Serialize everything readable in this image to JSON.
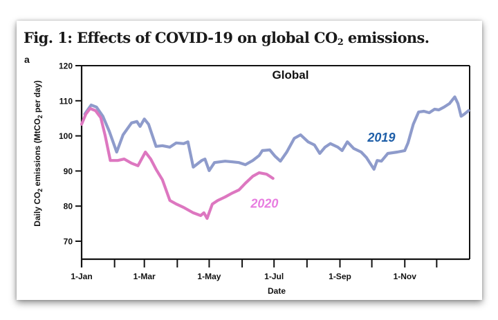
{
  "figure": {
    "title_main": "Fig. 1: Effects of COVID-19 on global CO",
    "title_sub": "2",
    "title_end": " emissions.",
    "panel_label": "a"
  },
  "chart_data": {
    "type": "line",
    "title": "Global",
    "xlabel": "Date",
    "ylabel": "Daily CO2 emissions (MtCO2 per day)",
    "ylabel_parts": {
      "pre": "Daily CO",
      "sub1": "2",
      "mid": " emissions (MtCO",
      "sub2": "2",
      "post": " per day)"
    },
    "ylim": [
      70,
      120
    ],
    "yticks": [
      70,
      80,
      90,
      100,
      110,
      120
    ],
    "xlim_day_of_year": [
      0,
      365
    ],
    "xticks": [
      {
        "day": 0,
        "label": "1-Jan"
      },
      {
        "day": 31,
        "label": ""
      },
      {
        "day": 59,
        "label": "1-Mar"
      },
      {
        "day": 90,
        "label": ""
      },
      {
        "day": 120,
        "label": "1-May"
      },
      {
        "day": 151,
        "label": ""
      },
      {
        "day": 181,
        "label": "1-Jul"
      },
      {
        "day": 212,
        "label": ""
      },
      {
        "day": 243,
        "label": "1-Sep"
      },
      {
        "day": 273,
        "label": ""
      },
      {
        "day": 304,
        "label": "1-Nov"
      },
      {
        "day": 334,
        "label": ""
      }
    ],
    "grid": false,
    "series": [
      {
        "name": "2019",
        "color": "#8e9bcb",
        "label_color": "#1f5fa8",
        "label_at": {
          "day": 282,
          "value": 98.3
        },
        "points": [
          [
            3,
            106.2
          ],
          [
            9,
            108.8
          ],
          [
            14,
            108.2
          ],
          [
            20,
            105.6
          ],
          [
            26,
            101.3
          ],
          [
            33,
            95.4
          ],
          [
            39,
            100.3
          ],
          [
            47,
            103.7
          ],
          [
            52,
            104.1
          ],
          [
            55,
            102.7
          ],
          [
            59,
            104.8
          ],
          [
            63,
            103.3
          ],
          [
            70,
            97.0
          ],
          [
            76,
            97.2
          ],
          [
            83,
            96.8
          ],
          [
            89,
            98.0
          ],
          [
            96,
            97.8
          ],
          [
            100,
            98.3
          ],
          [
            105,
            91.1
          ],
          [
            113,
            93.0
          ],
          [
            116,
            93.4
          ],
          [
            120,
            90.1
          ],
          [
            125,
            92.4
          ],
          [
            135,
            92.8
          ],
          [
            142,
            92.6
          ],
          [
            148,
            92.4
          ],
          [
            154,
            91.8
          ],
          [
            161,
            93.0
          ],
          [
            167,
            94.4
          ],
          [
            170,
            95.8
          ],
          [
            177,
            96.0
          ],
          [
            182,
            94.2
          ],
          [
            187,
            92.8
          ],
          [
            193,
            95.4
          ],
          [
            200,
            99.3
          ],
          [
            206,
            100.3
          ],
          [
            213,
            98.3
          ],
          [
            219,
            97.4
          ],
          [
            224,
            95.0
          ],
          [
            229,
            96.8
          ],
          [
            234,
            97.8
          ],
          [
            241,
            96.8
          ],
          [
            245,
            95.8
          ],
          [
            250,
            98.3
          ],
          [
            256,
            96.4
          ],
          [
            263,
            95.4
          ],
          [
            268,
            93.8
          ],
          [
            275,
            90.5
          ],
          [
            278,
            93.0
          ],
          [
            282,
            92.8
          ],
          [
            288,
            95.0
          ],
          [
            297,
            95.4
          ],
          [
            304,
            95.8
          ],
          [
            307,
            98.0
          ],
          [
            312,
            103.3
          ],
          [
            317,
            106.8
          ],
          [
            322,
            107.0
          ],
          [
            327,
            106.6
          ],
          [
            332,
            107.6
          ],
          [
            336,
            107.4
          ],
          [
            341,
            108.2
          ],
          [
            346,
            109.2
          ],
          [
            351,
            111.1
          ],
          [
            354,
            109.2
          ],
          [
            357,
            105.6
          ],
          [
            360,
            106.2
          ],
          [
            364,
            107.2
          ]
        ]
      },
      {
        "name": "2020",
        "color": "#dd77c0",
        "label_color": "#e87de0",
        "label_at": {
          "day": 172,
          "value": 79.5
        },
        "points": [
          [
            0,
            103.3
          ],
          [
            4,
            106.2
          ],
          [
            8,
            107.8
          ],
          [
            13,
            107.2
          ],
          [
            18,
            105.2
          ],
          [
            22,
            100.3
          ],
          [
            27,
            93.0
          ],
          [
            34,
            93.0
          ],
          [
            40,
            93.4
          ],
          [
            47,
            92.2
          ],
          [
            53,
            91.5
          ],
          [
            60,
            95.4
          ],
          [
            65,
            93.4
          ],
          [
            70,
            90.5
          ],
          [
            76,
            87.5
          ],
          [
            83,
            81.6
          ],
          [
            89,
            80.6
          ],
          [
            96,
            79.6
          ],
          [
            105,
            78.1
          ],
          [
            112,
            77.3
          ],
          [
            115,
            78.1
          ],
          [
            118,
            76.5
          ],
          [
            123,
            80.6
          ],
          [
            128,
            81.6
          ],
          [
            135,
            82.6
          ],
          [
            141,
            83.6
          ],
          [
            148,
            84.6
          ],
          [
            154,
            86.5
          ],
          [
            161,
            88.5
          ],
          [
            167,
            89.5
          ],
          [
            174,
            89.1
          ],
          [
            177,
            88.5
          ],
          [
            180,
            87.9
          ]
        ]
      }
    ]
  }
}
